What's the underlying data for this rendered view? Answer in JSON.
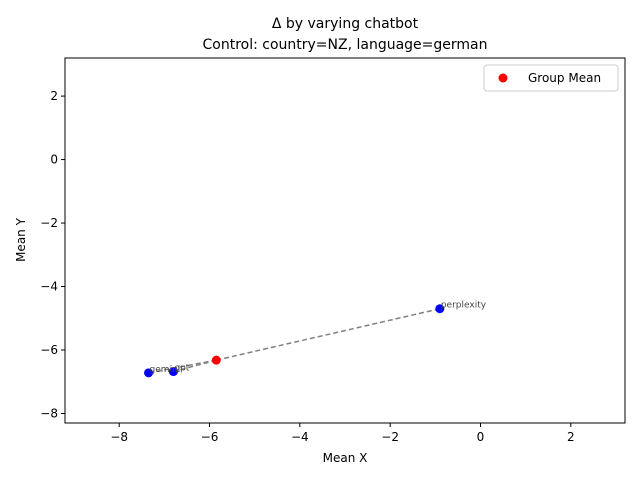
{
  "chart_data": {
    "type": "scatter",
    "title": "Δ by varying chatbot",
    "subtitle": "Control: country=NZ, language=german",
    "xlabel": "Mean X",
    "ylabel": "Mean Y",
    "xlim": [
      -9.2,
      3.2
    ],
    "ylim": [
      -8.3,
      3.2
    ],
    "xticks": [
      -8,
      -6,
      -4,
      -2,
      0,
      2
    ],
    "yticks": [
      2,
      0,
      -2,
      -4,
      -6,
      -8
    ],
    "xtick_labels": [
      "−8",
      "−6",
      "−4",
      "−2",
      "0",
      "2"
    ],
    "ytick_labels": [
      "2",
      "0",
      "−2",
      "−4",
      "−6",
      "−8"
    ],
    "points": [
      {
        "label": "perplexity",
        "x": -0.9,
        "y": -4.7
      },
      {
        "label": "gemini",
        "x": -7.35,
        "y": -6.72
      },
      {
        "label": "gpt",
        "x": -6.8,
        "y": -6.68
      }
    ],
    "group_mean": {
      "x": -5.85,
      "y": -6.32
    },
    "legend": {
      "label": "Group Mean",
      "position": "top-right"
    },
    "colors": {
      "points": "#0000ff",
      "group_mean": "#ff0000",
      "connector": "#808080",
      "axes": "#000000"
    }
  }
}
